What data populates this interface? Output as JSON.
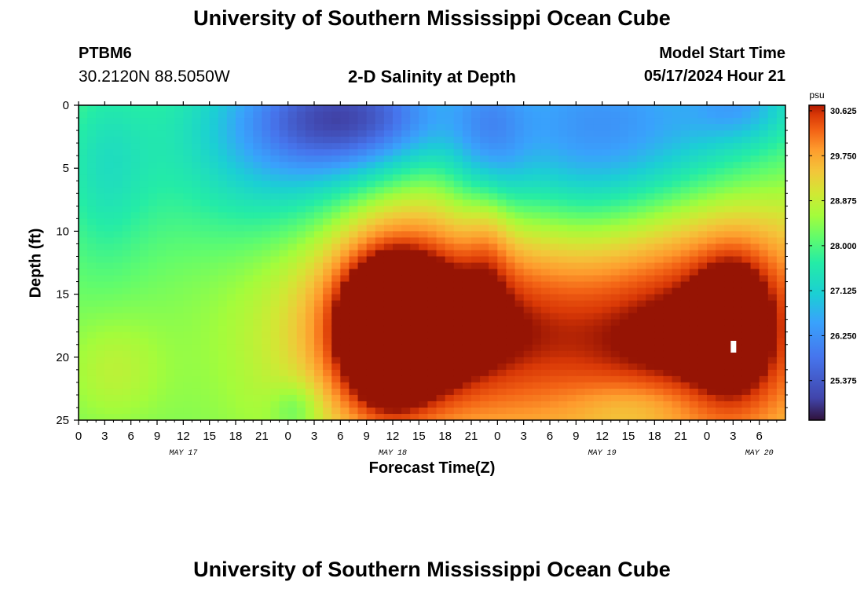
{
  "page": {
    "title_top": "University of Southern Mississippi Ocean Cube",
    "title_bottom": "University of Southern Mississippi Ocean Cube",
    "station_id": "PTBM6",
    "station_coords": "30.2120N  88.5050W",
    "model_start_label": "Model Start Time",
    "model_start_value": "05/17/2024 Hour 21"
  },
  "colors": {
    "background": "#ffffff",
    "axis": "#000000",
    "marker": "#ffffff"
  },
  "chart_data": {
    "type": "heatmap",
    "title": "2-D Salinity at Depth",
    "xlabel": "Forecast Time(Z)",
    "ylabel": "Depth (ft)",
    "x_hours": [
      0,
      81
    ],
    "ylim": [
      0,
      25
    ],
    "y_ticks": [
      0,
      5,
      10,
      15,
      20,
      25
    ],
    "x_tick_labels": [
      "0",
      "3",
      "6",
      "9",
      "12",
      "15",
      "18",
      "21",
      "0",
      "3",
      "6",
      "9",
      "12",
      "15",
      "18",
      "21",
      "0",
      "3",
      "6",
      "9",
      "12",
      "15",
      "18",
      "21",
      "0",
      "3",
      "6"
    ],
    "day_labels": [
      {
        "label": "MAY 17",
        "hour": 12
      },
      {
        "label": "MAY 18",
        "hour": 36
      },
      {
        "label": "MAY 19",
        "hour": 60
      },
      {
        "label": "MAY 20",
        "hour": 78
      }
    ],
    "colorbar": {
      "unit": "psu",
      "min": 24.5,
      "max": 30.625,
      "tick_values": [
        30.625,
        29.75,
        28.875,
        28.0,
        27.125,
        26.25,
        25.375
      ],
      "tick_labels": [
        "30.625",
        "29.750",
        "28.875",
        "28.000",
        "27.125",
        "26.250",
        "25.375"
      ]
    },
    "marker": {
      "hour": 75,
      "depth": 19.2
    },
    "cell_hours": 1,
    "cell_depth_ft": 0.5
  }
}
